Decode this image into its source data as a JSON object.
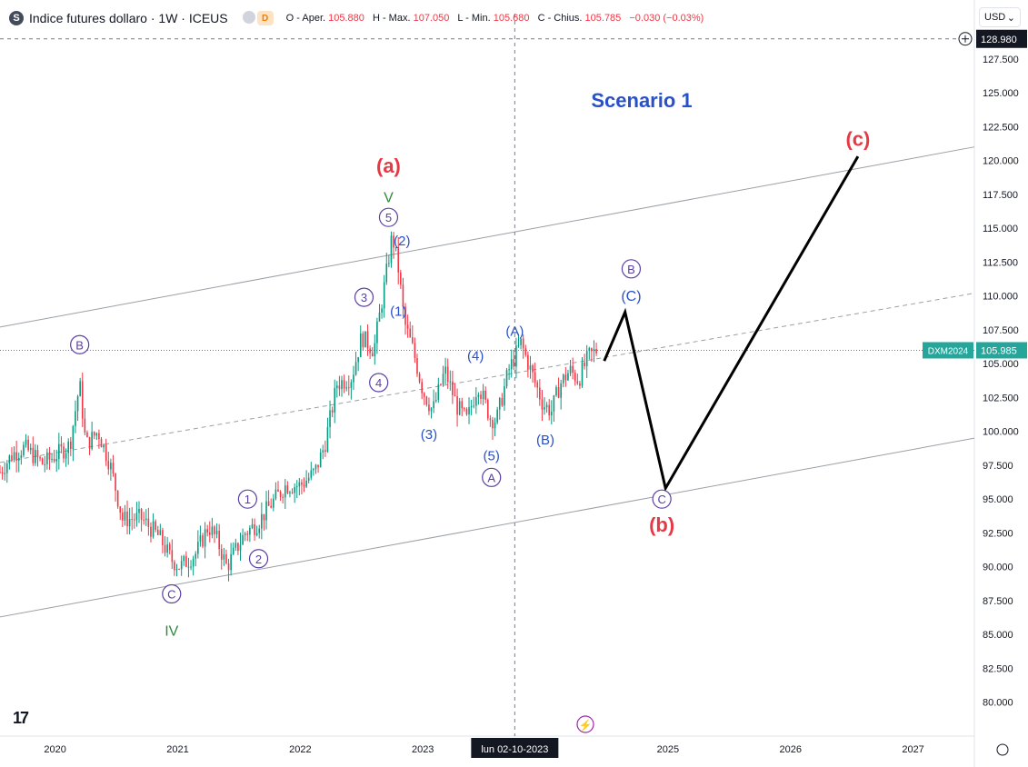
{
  "header": {
    "symbol_icon": "S",
    "title": "Indice futures dollaro · 1W · ICEUS",
    "status_badge": "D",
    "ohlc": [
      {
        "key": "O - Aper.",
        "value": "105.880"
      },
      {
        "key": "H - Max.",
        "value": "107.050"
      },
      {
        "key": "L - Min.",
        "value": "105.680"
      },
      {
        "key": "C - Chius.",
        "value": "105.785"
      }
    ],
    "change": "−0.030 (−0.03%)"
  },
  "currency_selector": {
    "label": "USD",
    "icon": "chevron-down-icon"
  },
  "colors": {
    "up": "#089981",
    "down": "#f23645",
    "wave_red": "#e53945",
    "wave_blue": "#2850c8",
    "wave_purple": "#5b3fa3",
    "wave_green": "#2e8b3a",
    "channel": "#9aa0a6",
    "price_tag": "#26a69a",
    "projection": "#000000"
  },
  "chart_data": {
    "type": "candlestick",
    "title": "Scenario 1",
    "x_ticks": [
      "2020",
      "2021",
      "2022",
      "2023",
      "2025",
      "2026",
      "2027"
    ],
    "y_ticks": [
      "80.000",
      "82.500",
      "85.000",
      "87.500",
      "90.000",
      "92.500",
      "95.000",
      "97.500",
      "100.000",
      "102.500",
      "105.000",
      "107.500",
      "110.000",
      "112.500",
      "115.000",
      "117.500",
      "120.000",
      "122.500",
      "125.000",
      "127.500"
    ],
    "ylim": [
      77.5,
      129.5
    ],
    "xlim": [
      2019.55,
      2027.5
    ],
    "crosshair": {
      "x_label": "lun 02-10-2023",
      "x": 2023.75,
      "y_label": "128.980",
      "y": 128.98
    },
    "last_price": {
      "label": "DXM2024",
      "value": "105.985",
      "y": 105.985
    },
    "price_anchors": [
      [
        2019.55,
        97.0
      ],
      [
        2019.65,
        98.3
      ],
      [
        2019.75,
        98.8
      ],
      [
        2019.9,
        97.6
      ],
      [
        2020.0,
        98.2
      ],
      [
        2020.12,
        99.0
      ],
      [
        2020.2,
        103.5
      ],
      [
        2020.25,
        99.0
      ],
      [
        2020.35,
        100.0
      ],
      [
        2020.45,
        97.5
      ],
      [
        2020.55,
        93.5
      ],
      [
        2020.7,
        93.6
      ],
      [
        2020.85,
        92.2
      ],
      [
        2020.95,
        90.5
      ],
      [
        2021.02,
        90.0
      ],
      [
        2021.15,
        91.0
      ],
      [
        2021.25,
        93.0
      ],
      [
        2021.32,
        92.0
      ],
      [
        2021.4,
        90.0
      ],
      [
        2021.55,
        92.5
      ],
      [
        2021.65,
        93.2
      ],
      [
        2021.75,
        94.5
      ],
      [
        2021.88,
        96.0
      ],
      [
        2022.0,
        96.0
      ],
      [
        2022.12,
        97.0
      ],
      [
        2022.2,
        99.0
      ],
      [
        2022.3,
        103.5
      ],
      [
        2022.42,
        104.0
      ],
      [
        2022.5,
        107.0
      ],
      [
        2022.6,
        106.0
      ],
      [
        2022.7,
        111.5
      ],
      [
        2022.75,
        114.5
      ],
      [
        2022.8,
        112.0
      ],
      [
        2022.85,
        108.0
      ],
      [
        2022.92,
        106.0
      ],
      [
        2023.0,
        103.0
      ],
      [
        2023.08,
        101.5
      ],
      [
        2023.18,
        104.5
      ],
      [
        2023.28,
        101.8
      ],
      [
        2023.36,
        100.8
      ],
      [
        2023.45,
        103.5
      ],
      [
        2023.55,
        101.0
      ],
      [
        2023.6,
        100.8
      ],
      [
        2023.7,
        104.5
      ],
      [
        2023.8,
        106.5
      ],
      [
        2023.88,
        104.5
      ],
      [
        2023.98,
        102.0
      ],
      [
        2024.05,
        101.5
      ],
      [
        2024.12,
        103.5
      ],
      [
        2024.2,
        104.5
      ],
      [
        2024.27,
        103.8
      ],
      [
        2024.35,
        105.5
      ],
      [
        2024.42,
        106.0
      ]
    ],
    "channel_lines": [
      {
        "style": "solid",
        "points": [
          [
            2019.55,
            107.7
          ],
          [
            2027.5,
            121.0
          ]
        ]
      },
      {
        "style": "dashed",
        "points": [
          [
            2019.55,
            97.7
          ],
          [
            2027.5,
            110.2
          ]
        ]
      },
      {
        "style": "solid",
        "points": [
          [
            2019.55,
            86.3
          ],
          [
            2027.5,
            99.5
          ]
        ]
      }
    ],
    "projection_path": [
      [
        2024.48,
        105.2
      ],
      [
        2024.65,
        108.8
      ],
      [
        2024.98,
        95.8
      ],
      [
        2026.55,
        120.3
      ]
    ],
    "wave_labels": [
      {
        "text": "(a)",
        "x": 2022.72,
        "y": 119.6,
        "color": "red",
        "size": 22,
        "circle": false,
        "bold": true
      },
      {
        "text": "V",
        "x": 2022.72,
        "y": 117.3,
        "color": "green",
        "size": 16,
        "circle": false
      },
      {
        "text": "5",
        "x": 2022.72,
        "y": 115.8,
        "color": "purple",
        "circle": true
      },
      {
        "text": "(2)",
        "x": 2022.83,
        "y": 114.1,
        "color": "blue",
        "size": 15,
        "circle": false
      },
      {
        "text": "3",
        "x": 2022.52,
        "y": 109.9,
        "color": "purple",
        "circle": true
      },
      {
        "text": "(1)",
        "x": 2022.8,
        "y": 108.9,
        "color": "blue",
        "size": 15,
        "circle": false
      },
      {
        "text": "4",
        "x": 2022.64,
        "y": 103.6,
        "color": "purple",
        "circle": true
      },
      {
        "text": "(3)",
        "x": 2023.05,
        "y": 99.8,
        "color": "blue",
        "size": 15,
        "circle": false
      },
      {
        "text": "(4)",
        "x": 2023.43,
        "y": 105.6,
        "color": "blue",
        "size": 15,
        "circle": false
      },
      {
        "text": "(5)",
        "x": 2023.56,
        "y": 98.2,
        "color": "blue",
        "size": 15,
        "circle": false
      },
      {
        "text": "A",
        "x": 2023.56,
        "y": 96.6,
        "color": "purple",
        "circle": true
      },
      {
        "text": "(A)",
        "x": 2023.75,
        "y": 107.4,
        "color": "blue",
        "size": 15,
        "circle": false
      },
      {
        "text": "(B)",
        "x": 2024.0,
        "y": 99.4,
        "color": "blue",
        "size": 15,
        "circle": false
      },
      {
        "text": "B",
        "x": 2024.7,
        "y": 112.0,
        "color": "purple",
        "circle": true
      },
      {
        "text": "(C)",
        "x": 2024.7,
        "y": 110.0,
        "color": "blue",
        "size": 16,
        "circle": false
      },
      {
        "text": "B",
        "x": 2020.2,
        "y": 106.4,
        "color": "purple",
        "circle": true
      },
      {
        "text": "1",
        "x": 2021.57,
        "y": 95.0,
        "color": "purple",
        "circle": true
      },
      {
        "text": "2",
        "x": 2021.66,
        "y": 90.6,
        "color": "purple",
        "circle": true
      },
      {
        "text": "C",
        "x": 2020.95,
        "y": 88.0,
        "color": "purple",
        "circle": true
      },
      {
        "text": "IV",
        "x": 2020.95,
        "y": 85.3,
        "color": "green",
        "size": 16,
        "circle": false
      },
      {
        "text": "C",
        "x": 2024.95,
        "y": 95.0,
        "color": "purple",
        "circle": true
      },
      {
        "text": "(b)",
        "x": 2024.95,
        "y": 93.1,
        "color": "red",
        "size": 22,
        "circle": false,
        "bold": true
      },
      {
        "text": "(c)",
        "x": 2026.55,
        "y": 121.6,
        "color": "red",
        "size": 22,
        "circle": false,
        "bold": true
      }
    ]
  }
}
